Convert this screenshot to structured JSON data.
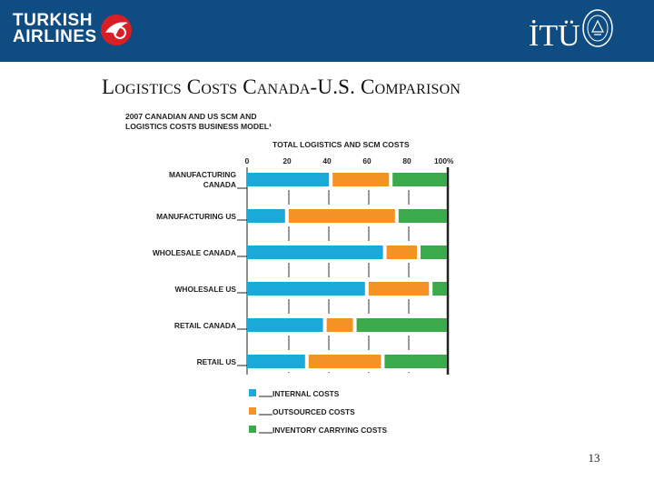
{
  "header": {
    "brand_line1": "TURKISH",
    "brand_line2": "AIRLINES",
    "university_logo": "İTÜ",
    "colors": {
      "bar": "#0f4c81",
      "brand_red": "#d91f26"
    },
    "icons": [
      "airline-logo-icon",
      "university-seal-icon"
    ]
  },
  "slide": {
    "title": "Logistics Costs Canada-U.S. Comparison",
    "page_number": "13"
  },
  "chart_heading": {
    "line1": "2007 CANADIAN AND US SCM AND",
    "line2": "LOGISTICS COSTS BUSINESS MODEL¹"
  },
  "chart_data": {
    "type": "bar",
    "orientation": "horizontal",
    "stacked": true,
    "title": "TOTAL LOGISTICS AND SCM COSTS",
    "x_ticks": [
      "0",
      "20",
      "40",
      "60",
      "80",
      "100%"
    ],
    "xlim": [
      0,
      100
    ],
    "categories": [
      "MANUFACTURING CANADA",
      "MANUFACTURING US",
      "WHOLESALE CANADA",
      "WHOLESALE US",
      "RETAIL CANADA",
      "RETAIL US"
    ],
    "category_lines": [
      [
        "MANUFACTURING",
        "CANADA"
      ],
      [
        "MANUFACTURING US"
      ],
      [
        "WHOLESALE CANADA"
      ],
      [
        "WHOLESALE US"
      ],
      [
        "RETAIL CANADA"
      ],
      [
        "RETAIL US"
      ]
    ],
    "series": [
      {
        "name": "INTERNAL COSTS",
        "color": "#1aa9d8",
        "values": [
          41,
          19,
          68,
          59,
          38,
          29
        ]
      },
      {
        "name": "OUTSOURCED COSTS",
        "color": "#f39325",
        "values": [
          30,
          55,
          17,
          32,
          15,
          38
        ]
      },
      {
        "name": "INVENTORY CARRYING COSTS",
        "color": "#3aaa4a",
        "values": [
          29,
          26,
          15,
          9,
          47,
          33
        ]
      }
    ],
    "legend_position": "bottom-left",
    "grid": true
  }
}
